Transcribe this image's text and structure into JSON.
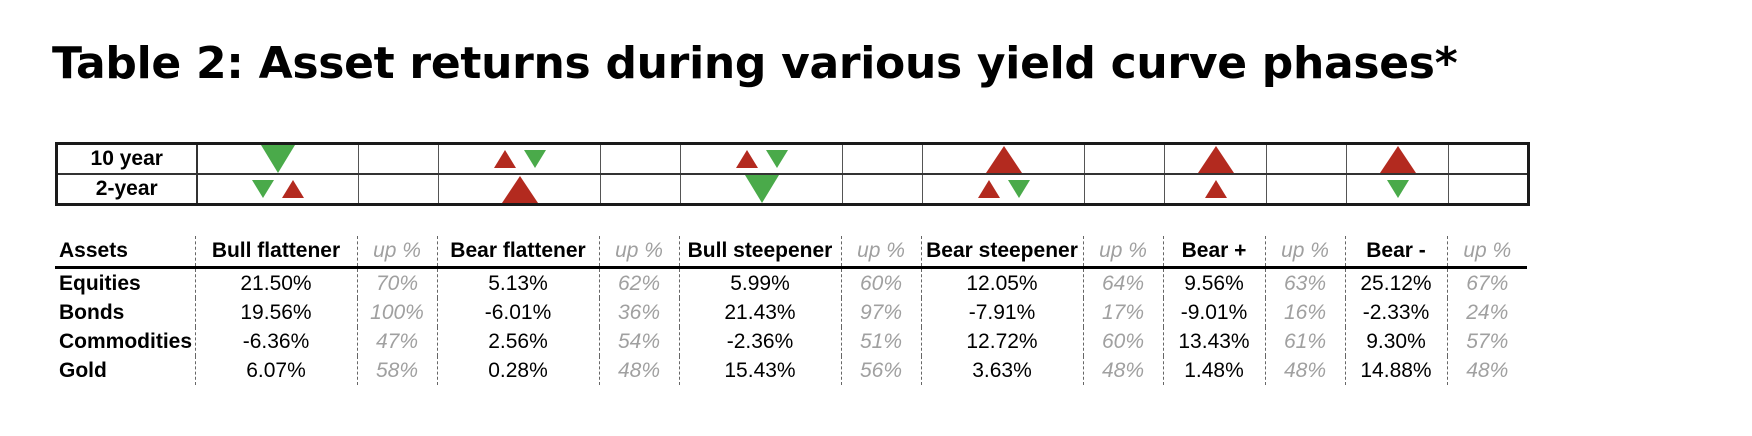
{
  "title": "Table 2: Asset returns during various yield curve phases*",
  "arrow_grid": {
    "rows": [
      {
        "label": "10 year",
        "cells": [
          [
            "g-down-l"
          ],
          [],
          [
            "r-up-s",
            "g-down-s"
          ],
          [],
          [
            "r-up-s",
            "g-down-s"
          ],
          [],
          [
            "r-up-l"
          ],
          [],
          [
            "r-up-l"
          ],
          [],
          [
            "r-up-l"
          ],
          []
        ]
      },
      {
        "label": "2-year",
        "cells": [
          [
            "g-down-s",
            "r-up-s"
          ],
          [],
          [
            "r-up-l"
          ],
          [],
          [
            "g-down-l"
          ],
          [],
          [
            "r-up-s",
            "g-down-s"
          ],
          [],
          [
            "r-up-s"
          ],
          [],
          [
            "g-down-s"
          ],
          []
        ]
      }
    ],
    "colors": {
      "green": "#4aaa4a",
      "red": "#b32a1f"
    }
  },
  "table": {
    "headers": [
      "Assets",
      "Bull flattener",
      "up %",
      "Bear flattener",
      "up %",
      "Bull steepener",
      "up %",
      "Bear steepener",
      "up %",
      "Bear +",
      "up %",
      "Bear -",
      "up %"
    ],
    "rows": [
      [
        "Equities",
        "21.50%",
        "70%",
        "5.13%",
        "62%",
        "5.99%",
        "60%",
        "12.05%",
        "64%",
        "9.56%",
        "63%",
        "25.12%",
        "67%"
      ],
      [
        "Bonds",
        "19.56%",
        "100%",
        "-6.01%",
        "36%",
        "21.43%",
        "97%",
        "-7.91%",
        "17%",
        "-9.01%",
        "16%",
        "-2.33%",
        "24%"
      ],
      [
        "Commodities",
        "-6.36%",
        "47%",
        "2.56%",
        "54%",
        "-2.36%",
        "51%",
        "12.72%",
        "60%",
        "13.43%",
        "61%",
        "9.30%",
        "57%"
      ],
      [
        "Gold",
        "6.07%",
        "58%",
        "0.28%",
        "48%",
        "15.43%",
        "56%",
        "3.63%",
        "48%",
        "1.48%",
        "48%",
        "14.88%",
        "48%"
      ]
    ]
  }
}
